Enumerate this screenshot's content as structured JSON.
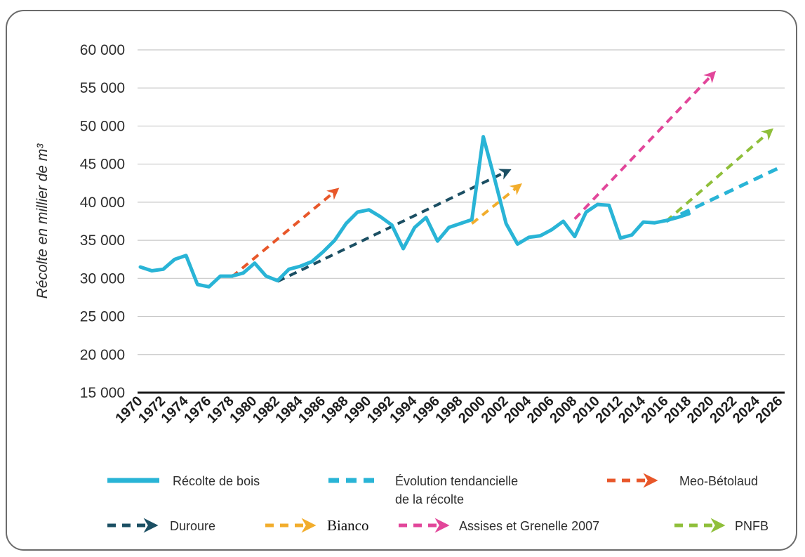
{
  "chart_data": {
    "type": "line",
    "ylabel": "Récolte en millier de m³",
    "xlabel": "",
    "ylim": [
      15000,
      60000
    ],
    "yticks": [
      15000,
      20000,
      25000,
      30000,
      35000,
      40000,
      45000,
      50000,
      55000,
      60000
    ],
    "ytick_labels": [
      "15 000",
      "20 000",
      "25 000",
      "30 000",
      "35 000",
      "40 000",
      "45 000",
      "50 000",
      "55 000",
      "60 000"
    ],
    "xlim": [
      1970,
      2026
    ],
    "xtick_labels": [
      "1970",
      "1972",
      "1974",
      "1976",
      "1978",
      "1980",
      "1982",
      "1984",
      "1986",
      "1988",
      "1990",
      "1992",
      "1994",
      "1996",
      "1998",
      "2000",
      "2002",
      "2004",
      "2006",
      "2008",
      "2010",
      "2012",
      "2014",
      "2016",
      "2018",
      "2020",
      "2022",
      "2024",
      "2026"
    ],
    "grid": "horizontal",
    "legend_position": "bottom",
    "colors": {
      "recolte": "#29b4d6",
      "tendance": "#29b4d6",
      "meo": "#e8572a",
      "duroure": "#1b4f63",
      "bianco": "#f2ad2c",
      "assises": "#e2469a",
      "pnfb": "#8fbf3a",
      "axis": "#1a1a1a",
      "grid": "#c8c8c8"
    },
    "series": [
      {
        "name": "Récolte de bois",
        "style": "solid",
        "color_key": "recolte",
        "x": [
          1970,
          1971,
          1972,
          1973,
          1974,
          1975,
          1976,
          1977,
          1978,
          1979,
          1980,
          1981,
          1982,
          1983,
          1984,
          1985,
          1986,
          1987,
          1988,
          1989,
          1990,
          1991,
          1992,
          1993,
          1994,
          1995,
          1996,
          1997,
          1998,
          1999,
          2000,
          2001,
          2002,
          2003,
          2004,
          2005,
          2006,
          2007,
          2008,
          2009,
          2010,
          2011,
          2012,
          2013,
          2014,
          2015,
          2016,
          2017,
          2018
        ],
        "y": [
          31500,
          31000,
          31200,
          32500,
          33000,
          29200,
          28900,
          30300,
          30300,
          30700,
          32000,
          30300,
          29700,
          31200,
          31600,
          32200,
          33500,
          35000,
          37200,
          38700,
          39000,
          38100,
          37000,
          33900,
          36700,
          38000,
          34900,
          36700,
          37200,
          37700,
          48600,
          43000,
          37200,
          34500,
          35400,
          35600,
          36400,
          37500,
          35500,
          38700,
          39700,
          39600,
          35300,
          35700,
          37400,
          37300,
          37600,
          38000,
          38500
        ]
      },
      {
        "name": "Évolution tendancielle de la récolte",
        "style": "dashed",
        "color_key": "tendance",
        "x": [
          2016,
          2026
        ],
        "y": [
          37500,
          44600
        ]
      },
      {
        "name": "Meo-Bétolaud",
        "style": "dashed-arrow",
        "color_key": "meo",
        "x": [
          1978,
          1987
        ],
        "y": [
          30200,
          41400
        ]
      },
      {
        "name": "Duroure",
        "style": "dashed-arrow",
        "color_key": "duroure",
        "x": [
          1982,
          2002
        ],
        "y": [
          29600,
          44000
        ]
      },
      {
        "name": "Bianco",
        "style": "dashed-arrow",
        "color_key": "bianco",
        "x": [
          1999,
          2003
        ],
        "y": [
          37200,
          42000
        ]
      },
      {
        "name": "Assises et Grenelle 2007",
        "style": "dashed-arrow",
        "color_key": "assises",
        "x": [
          2008,
          2020
        ],
        "y": [
          37800,
          56700
        ]
      },
      {
        "name": "PNFB",
        "style": "dashed-arrow",
        "color_key": "pnfb",
        "x": [
          2016,
          2025
        ],
        "y": [
          37500,
          49200
        ]
      }
    ]
  },
  "legend": {
    "items": [
      {
        "label_lines": [
          "Récolte de bois"
        ],
        "style": "solid",
        "color_key": "recolte",
        "serif": false
      },
      {
        "label_lines": [
          "Évolution tendancielle",
          "de la récolte"
        ],
        "style": "dashed",
        "color_key": "tendance",
        "serif": false
      },
      {
        "label_lines": [
          "Meo-Bétolaud"
        ],
        "style": "dashed-arrow",
        "color_key": "meo",
        "serif": false
      },
      {
        "label_lines": [
          "Duroure"
        ],
        "style": "dashed-arrow",
        "color_key": "duroure",
        "serif": false
      },
      {
        "label_lines": [
          "Bianco"
        ],
        "style": "dashed-arrow",
        "color_key": "bianco",
        "serif": true
      },
      {
        "label_lines": [
          "Assises et Grenelle 2007"
        ],
        "style": "dashed-arrow",
        "color_key": "assises",
        "serif": false
      },
      {
        "label_lines": [
          "PNFB"
        ],
        "style": "dashed-arrow",
        "color_key": "pnfb",
        "serif": false
      }
    ]
  }
}
